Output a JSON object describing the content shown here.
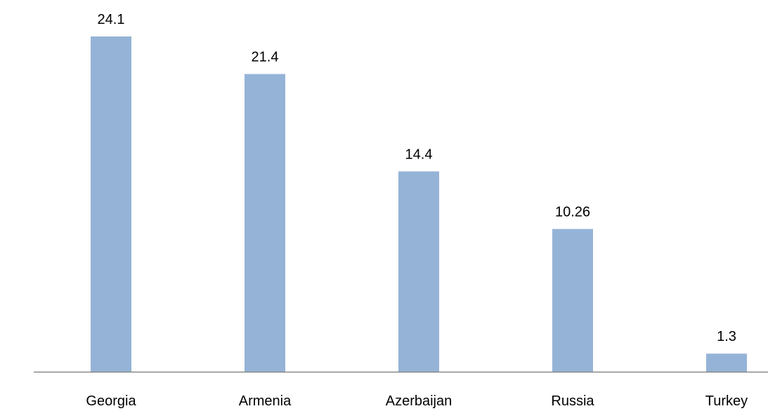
{
  "chart_data": {
    "type": "bar",
    "title": "",
    "categories": [
      "Georgia",
      "Armenia",
      "Azerbaijan",
      "Russia",
      "Turkey"
    ],
    "values": [
      24.1,
      21.4,
      14.4,
      10.26,
      1.3
    ],
    "value_labels": [
      "24.1",
      "21.4",
      "14.4",
      "10.26",
      "1.3"
    ],
    "xlabel": "",
    "ylabel": "",
    "ylim": [
      0,
      24.1
    ],
    "grid": false,
    "legend": "none",
    "colors": {
      "bar": "#95b3d7",
      "axis": "#888888"
    }
  }
}
